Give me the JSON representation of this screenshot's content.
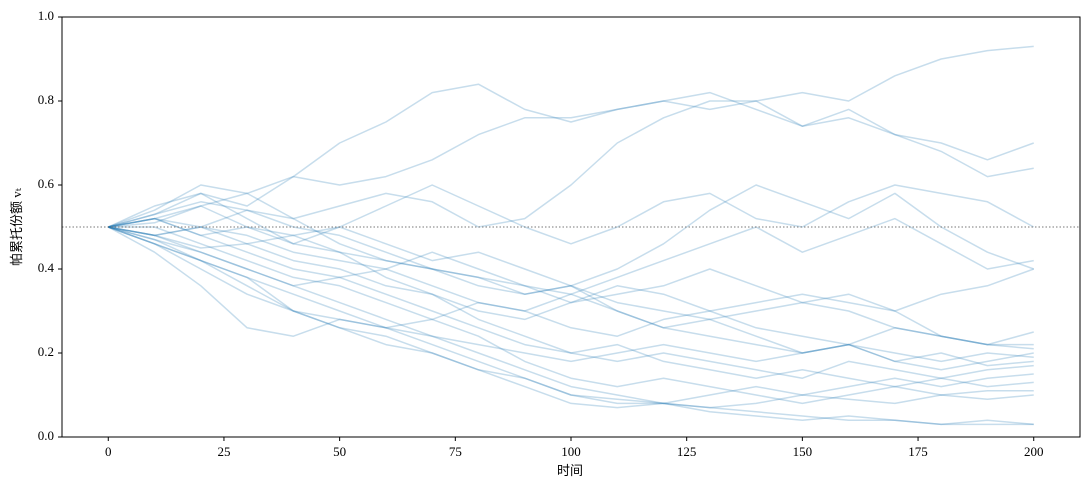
{
  "chart_data": {
    "type": "line",
    "xlabel": "时间",
    "ylabel": "帕累托份额 vₜ",
    "x": [
      0,
      10,
      20,
      30,
      40,
      50,
      60,
      70,
      80,
      90,
      100,
      110,
      120,
      130,
      140,
      150,
      160,
      170,
      180,
      190,
      200
    ],
    "xlim": [
      -10,
      210
    ],
    "xticks": [
      0,
      25,
      50,
      75,
      100,
      125,
      150,
      175,
      200
    ],
    "ylim": [
      0,
      1
    ],
    "yticks": [
      {
        "value": 0,
        "label": "0.0"
      },
      0.2,
      0.4,
      0.6,
      0.8,
      {
        "value": 1,
        "label": "1.0"
      }
    ],
    "hline": 0.5,
    "alpha": 0.25,
    "series": [
      {
        "color": "#1f77b4",
        "values": [
          0.5,
          0.52,
          0.55,
          0.58,
          0.62,
          0.6,
          0.62,
          0.66,
          0.72,
          0.76,
          0.76,
          0.78,
          0.8,
          0.78,
          0.8,
          0.82,
          0.8,
          0.86,
          0.9,
          0.92,
          0.93
        ]
      },
      {
        "color": "#1f77b4",
        "values": [
          0.5,
          0.53,
          0.58,
          0.55,
          0.62,
          0.7,
          0.75,
          0.82,
          0.84,
          0.78,
          0.75,
          0.78,
          0.8,
          0.82,
          0.78,
          0.74,
          0.78,
          0.72,
          0.7,
          0.66,
          0.7
        ]
      },
      {
        "color": "#1f77b4",
        "values": [
          0.5,
          0.48,
          0.5,
          0.54,
          0.52,
          0.55,
          0.58,
          0.56,
          0.5,
          0.52,
          0.6,
          0.7,
          0.76,
          0.8,
          0.8,
          0.74,
          0.76,
          0.72,
          0.68,
          0.62,
          0.64
        ]
      },
      {
        "color": "#1f77b4",
        "values": [
          0.5,
          0.52,
          0.48,
          0.5,
          0.46,
          0.5,
          0.55,
          0.6,
          0.55,
          0.5,
          0.46,
          0.5,
          0.56,
          0.58,
          0.52,
          0.5,
          0.56,
          0.6,
          0.58,
          0.56,
          0.5
        ]
      },
      {
        "color": "#1f77b4",
        "values": [
          0.5,
          0.47,
          0.44,
          0.4,
          0.36,
          0.38,
          0.4,
          0.44,
          0.4,
          0.36,
          0.34,
          0.38,
          0.42,
          0.46,
          0.5,
          0.44,
          0.48,
          0.52,
          0.46,
          0.4,
          0.42
        ]
      },
      {
        "color": "#1f77b4",
        "values": [
          0.5,
          0.55,
          0.58,
          0.52,
          0.46,
          0.44,
          0.42,
          0.4,
          0.38,
          0.34,
          0.36,
          0.4,
          0.46,
          0.54,
          0.6,
          0.56,
          0.52,
          0.58,
          0.5,
          0.44,
          0.4
        ]
      },
      {
        "color": "#1f77b4",
        "values": [
          0.5,
          0.46,
          0.42,
          0.38,
          0.3,
          0.28,
          0.26,
          0.28,
          0.32,
          0.3,
          0.26,
          0.24,
          0.28,
          0.3,
          0.26,
          0.24,
          0.22,
          0.26,
          0.24,
          0.22,
          0.25
        ]
      },
      {
        "color": "#1f77b4",
        "values": [
          0.5,
          0.48,
          0.45,
          0.46,
          0.42,
          0.4,
          0.36,
          0.34,
          0.3,
          0.28,
          0.32,
          0.36,
          0.34,
          0.3,
          0.32,
          0.34,
          0.32,
          0.3,
          0.24,
          0.22,
          0.21
        ]
      },
      {
        "color": "#1f77b4",
        "values": [
          0.5,
          0.44,
          0.36,
          0.26,
          0.24,
          0.28,
          0.26,
          0.24,
          0.22,
          0.2,
          0.18,
          0.2,
          0.22,
          0.2,
          0.18,
          0.2,
          0.22,
          0.18,
          0.16,
          0.18,
          0.2
        ]
      },
      {
        "color": "#1f77b4",
        "values": [
          0.5,
          0.52,
          0.5,
          0.48,
          0.44,
          0.42,
          0.4,
          0.36,
          0.32,
          0.3,
          0.34,
          0.3,
          0.26,
          0.28,
          0.24,
          0.2,
          0.22,
          0.2,
          0.18,
          0.2,
          0.19
        ]
      },
      {
        "color": "#1f77b4",
        "values": [
          0.5,
          0.48,
          0.5,
          0.46,
          0.48,
          0.44,
          0.38,
          0.34,
          0.28,
          0.24,
          0.2,
          0.18,
          0.2,
          0.18,
          0.16,
          0.14,
          0.18,
          0.16,
          0.14,
          0.16,
          0.17
        ]
      },
      {
        "color": "#1f77b4",
        "values": [
          0.5,
          0.46,
          0.4,
          0.34,
          0.3,
          0.26,
          0.24,
          0.2,
          0.16,
          0.14,
          0.1,
          0.09,
          0.08,
          0.1,
          0.12,
          0.1,
          0.12,
          0.14,
          0.12,
          0.14,
          0.15
        ]
      },
      {
        "color": "#1f77b4",
        "values": [
          0.5,
          0.52,
          0.48,
          0.44,
          0.4,
          0.38,
          0.34,
          0.3,
          0.26,
          0.22,
          0.2,
          0.22,
          0.18,
          0.16,
          0.14,
          0.16,
          0.14,
          0.12,
          0.14,
          0.12,
          0.13
        ]
      },
      {
        "color": "#1f77b4",
        "values": [
          0.5,
          0.5,
          0.46,
          0.42,
          0.38,
          0.36,
          0.32,
          0.28,
          0.24,
          0.18,
          0.14,
          0.12,
          0.14,
          0.12,
          0.1,
          0.08,
          0.1,
          0.12,
          0.1,
          0.11,
          0.11
        ]
      },
      {
        "color": "#1f77b4",
        "values": [
          0.5,
          0.47,
          0.42,
          0.38,
          0.34,
          0.3,
          0.26,
          0.22,
          0.18,
          0.14,
          0.1,
          0.08,
          0.08,
          0.07,
          0.08,
          0.1,
          0.09,
          0.08,
          0.1,
          0.09,
          0.1
        ]
      },
      {
        "color": "#1f77b4",
        "values": [
          0.5,
          0.48,
          0.44,
          0.4,
          0.36,
          0.32,
          0.28,
          0.24,
          0.2,
          0.16,
          0.12,
          0.1,
          0.08,
          0.07,
          0.06,
          0.05,
          0.04,
          0.04,
          0.03,
          0.04,
          0.03
        ]
      },
      {
        "color": "#1f77b4",
        "values": [
          0.5,
          0.46,
          0.42,
          0.36,
          0.3,
          0.26,
          0.22,
          0.2,
          0.16,
          0.12,
          0.08,
          0.07,
          0.08,
          0.06,
          0.05,
          0.04,
          0.05,
          0.04,
          0.03,
          0.03,
          0.03
        ]
      },
      {
        "color": "#1f77b4",
        "values": [
          0.5,
          0.53,
          0.56,
          0.54,
          0.5,
          0.48,
          0.44,
          0.4,
          0.36,
          0.34,
          0.36,
          0.32,
          0.3,
          0.28,
          0.3,
          0.32,
          0.3,
          0.26,
          0.24,
          0.22,
          0.22
        ]
      },
      {
        "color": "#1f77b4",
        "values": [
          0.5,
          0.54,
          0.6,
          0.58,
          0.52,
          0.46,
          0.42,
          0.4,
          0.38,
          0.36,
          0.32,
          0.34,
          0.36,
          0.4,
          0.36,
          0.32,
          0.34,
          0.3,
          0.34,
          0.36,
          0.4
        ]
      },
      {
        "color": "#1f77b4",
        "values": [
          0.5,
          0.51,
          0.55,
          0.5,
          0.48,
          0.5,
          0.46,
          0.42,
          0.44,
          0.4,
          0.36,
          0.3,
          0.26,
          0.24,
          0.22,
          0.2,
          0.22,
          0.18,
          0.2,
          0.17,
          0.18
        ]
      }
    ]
  }
}
